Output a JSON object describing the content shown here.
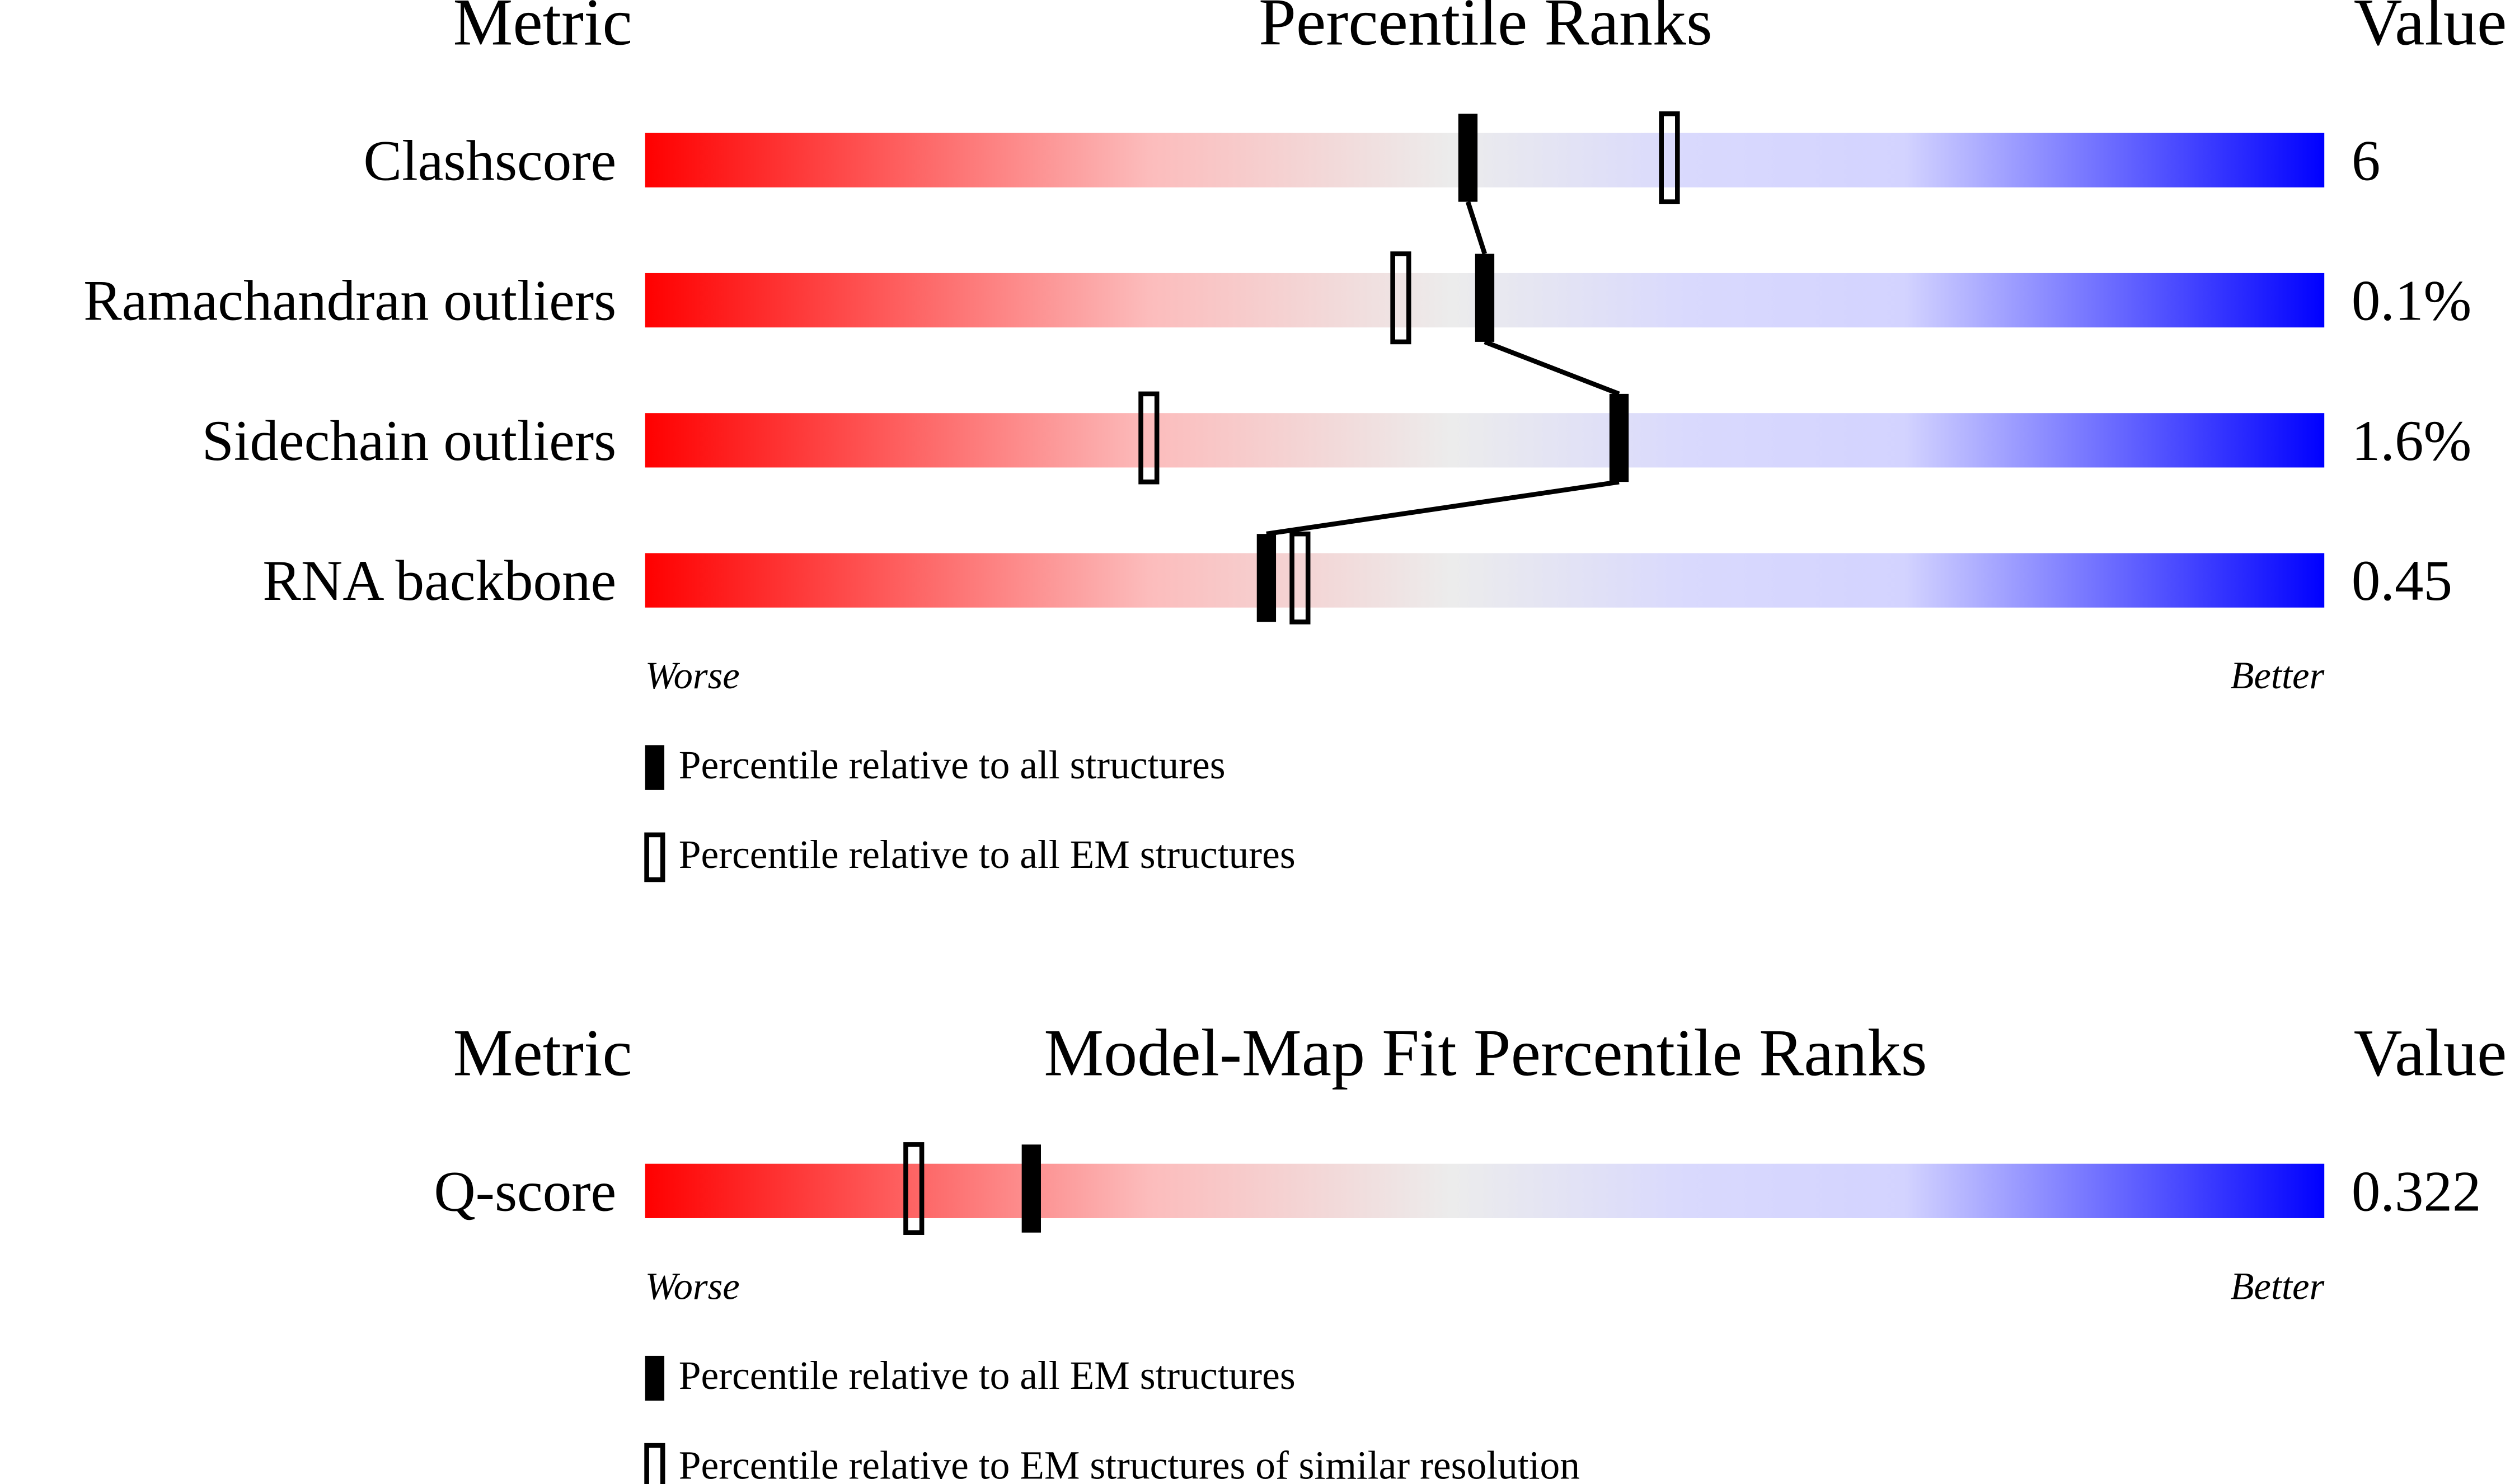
{
  "chart_data": [
    {
      "type": "slider",
      "metric_header": "Metric",
      "title": "Percentile Ranks",
      "value_header": "Value",
      "categories": [
        "Clashscore",
        "Ramachandran outliers",
        "Sidechain outliers",
        "RNA backbone"
      ],
      "value_labels": [
        "6",
        "0.1%",
        "1.6%",
        "0.45"
      ],
      "xlim": [
        0,
        100
      ],
      "worse": "Worse",
      "better": "Better",
      "connect": true,
      "series": [
        {
          "name": "Percentile relative to all structures",
          "color": "#000000",
          "marker": "filled",
          "values": [
            49,
            50,
            58,
            37
          ]
        },
        {
          "name": "Percentile relative to all EM structures",
          "color": "#000000",
          "marker": "outline",
          "values": [
            61,
            45,
            30,
            39
          ]
        }
      ]
    },
    {
      "type": "slider",
      "metric_header": "Metric",
      "title": "Model-Map Fit Percentile Ranks",
      "value_header": "Value",
      "categories": [
        "Q-score"
      ],
      "value_labels": [
        "0.322"
      ],
      "xlim": [
        0,
        100
      ],
      "worse": "Worse",
      "better": "Better",
      "connect": false,
      "series": [
        {
          "name": "Percentile relative to all EM structures",
          "color": "#000000",
          "marker": "filled",
          "values": [
            23
          ]
        },
        {
          "name": "Percentile relative to EM structures of similar resolution",
          "color": "#000000",
          "marker": "outline",
          "values": [
            16
          ]
        }
      ]
    }
  ]
}
